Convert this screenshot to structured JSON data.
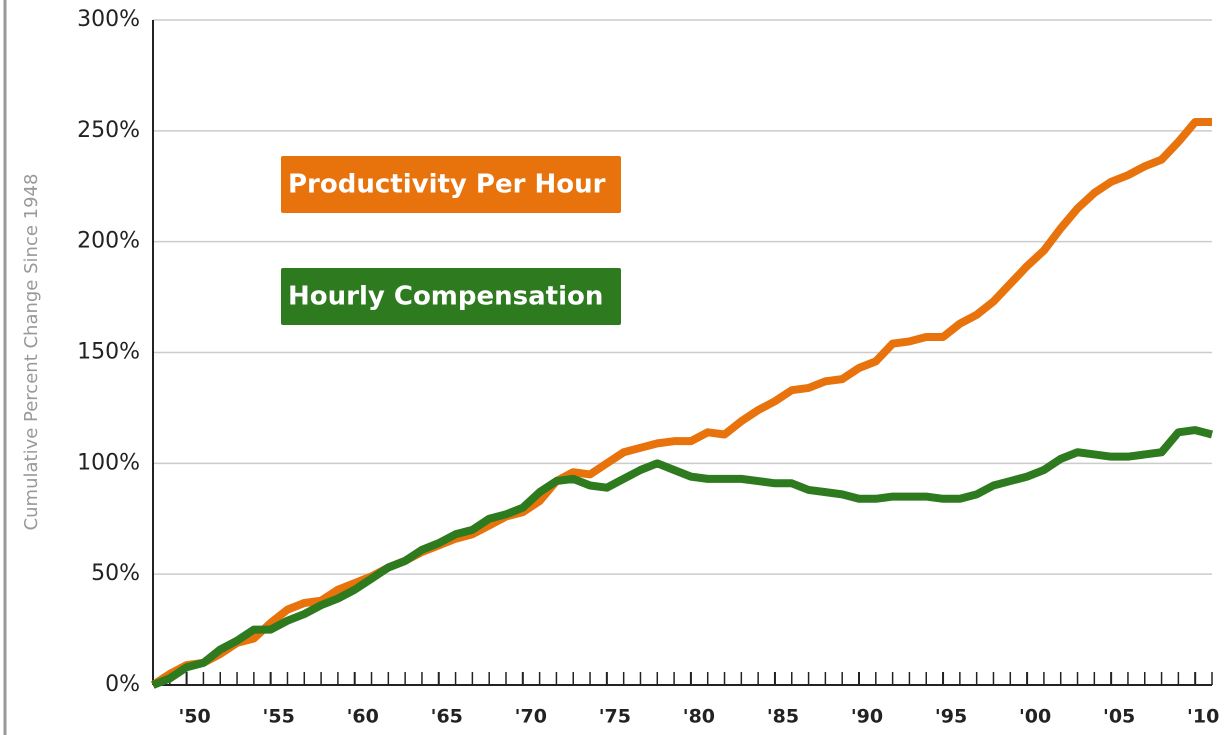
{
  "chart_data": {
    "type": "line",
    "y_axis_label": "Cumulative Percent Change Since 1948",
    "x": [
      1948,
      1949,
      1950,
      1951,
      1952,
      1953,
      1954,
      1955,
      1956,
      1957,
      1958,
      1959,
      1960,
      1961,
      1962,
      1963,
      1964,
      1965,
      1966,
      1967,
      1968,
      1969,
      1970,
      1971,
      1972,
      1973,
      1974,
      1975,
      1976,
      1977,
      1978,
      1979,
      1980,
      1981,
      1982,
      1983,
      1984,
      1985,
      1986,
      1987,
      1988,
      1989,
      1990,
      1991,
      1992,
      1993,
      1994,
      1995,
      1996,
      1997,
      1998,
      1999,
      2000,
      2001,
      2002,
      2003,
      2004,
      2005,
      2006,
      2007,
      2008,
      2009,
      2010,
      2011
    ],
    "series": [
      {
        "name": "Productivity Per Hour",
        "color": "#e8730c",
        "values": [
          0,
          5,
          9,
          10,
          14,
          19,
          21,
          28,
          34,
          37,
          38,
          43,
          46,
          49,
          53,
          56,
          60,
          63,
          66,
          68,
          72,
          76,
          78,
          83,
          92,
          96,
          95,
          100,
          105,
          107,
          109,
          110,
          110,
          114,
          113,
          119,
          124,
          128,
          133,
          134,
          137,
          138,
          143,
          146,
          154,
          155,
          157,
          157,
          163,
          167,
          173,
          181,
          189,
          196,
          206,
          215,
          222,
          227,
          230,
          234,
          237,
          245,
          254,
          254
        ]
      },
      {
        "name": "Hourly Compensation",
        "color": "#2d7a1f",
        "values": [
          0,
          3,
          8,
          10,
          16,
          20,
          25,
          25,
          29,
          32,
          36,
          39,
          43,
          48,
          53,
          56,
          61,
          64,
          68,
          70,
          75,
          77,
          80,
          87,
          92,
          93,
          90,
          89,
          93,
          97,
          100,
          97,
          94,
          93,
          93,
          93,
          92,
          91,
          91,
          88,
          87,
          86,
          84,
          84,
          85,
          85,
          85,
          84,
          84,
          86,
          90,
          92,
          94,
          97,
          102,
          105,
          104,
          103,
          103,
          104,
          105,
          114,
          115,
          113
        ]
      }
    ],
    "xlim": [
      1948,
      2011
    ],
    "ylim": [
      0,
      300
    ],
    "yticks": [
      {
        "value": 0,
        "label": "0%"
      },
      {
        "value": 50,
        "label": "50%"
      },
      {
        "value": 100,
        "label": "100%"
      },
      {
        "value": 150,
        "label": "150%"
      },
      {
        "value": 200,
        "label": "200%"
      },
      {
        "value": 250,
        "label": "250%"
      },
      {
        "value": 300,
        "label": "300%"
      }
    ],
    "xticks": [
      {
        "value": 1950,
        "label": "'50"
      },
      {
        "value": 1955,
        "label": "'55"
      },
      {
        "value": 1960,
        "label": "'60"
      },
      {
        "value": 1965,
        "label": "'65"
      },
      {
        "value": 1970,
        "label": "'70"
      },
      {
        "value": 1975,
        "label": "'75"
      },
      {
        "value": 1980,
        "label": "'80"
      },
      {
        "value": 1985,
        "label": "'85"
      },
      {
        "value": 1990,
        "label": "'90"
      },
      {
        "value": 1995,
        "label": "'95"
      },
      {
        "value": 2000,
        "label": "'00"
      },
      {
        "value": 2005,
        "label": "'05"
      },
      {
        "value": 2010,
        "label": "'10"
      }
    ],
    "grid": true
  }
}
